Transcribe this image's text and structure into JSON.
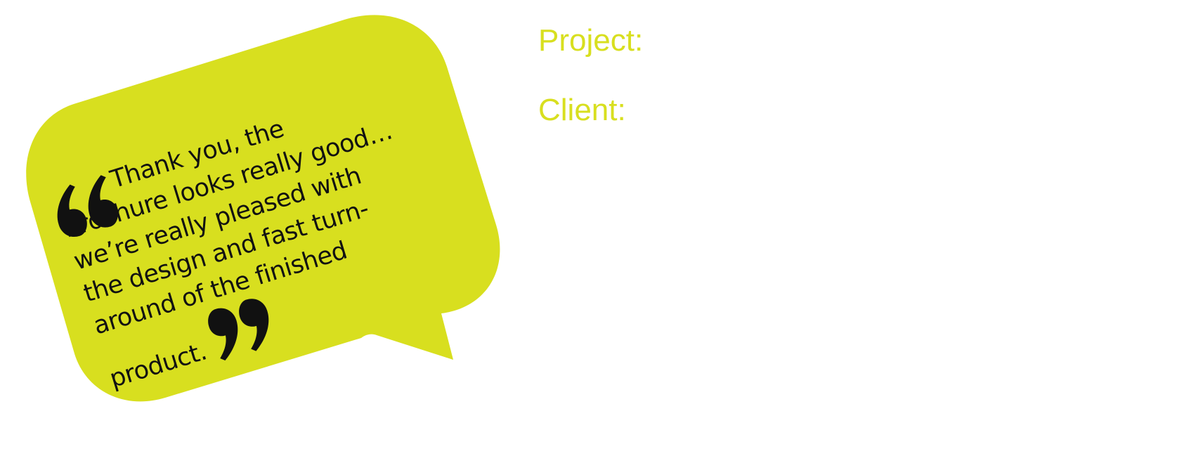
{
  "testimonial": {
    "lines": [
      "Thank you, the",
      "brochure looks really good…",
      "we’re really pleased with",
      "the design and fast turn-",
      "around of the finished",
      "product."
    ],
    "bubble_color": "#d8df1f",
    "text_color": "#111111"
  },
  "fields": {
    "project_label": "Project:",
    "client_label": "Client:",
    "label_color": "#d8df1f"
  },
  "icons": {
    "open_quote": "open-quote-icon",
    "close_quote": "close-quote-icon"
  }
}
